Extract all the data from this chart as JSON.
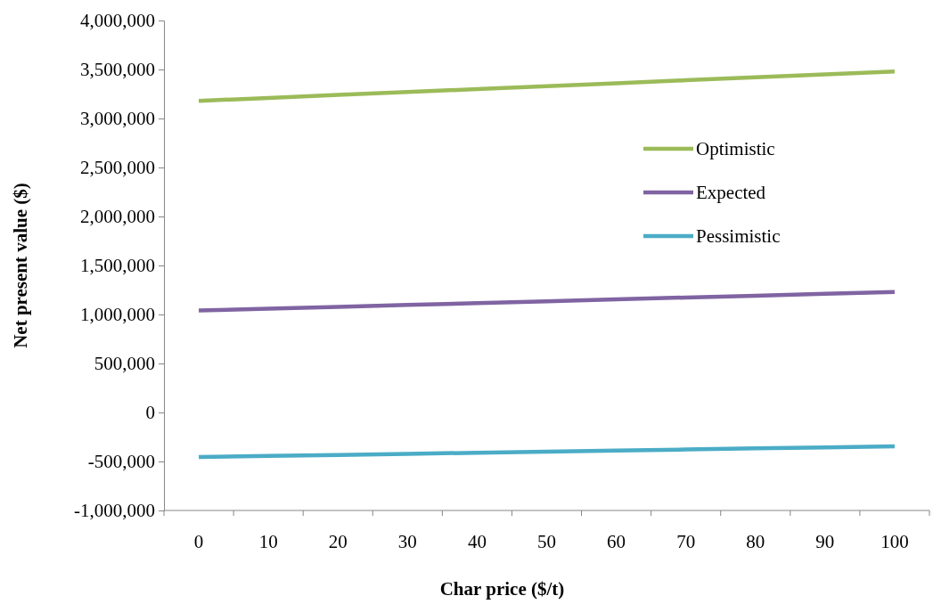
{
  "chart_data": {
    "type": "line",
    "xlabel": "Char price ($/t)",
    "ylabel": "Net present value ($)",
    "categories": [
      "0",
      "10",
      "20",
      "30",
      "40",
      "50",
      "60",
      "70",
      "80",
      "90",
      "100"
    ],
    "series": [
      {
        "name": "Optimistic",
        "color": "#9bbb59",
        "values": [
          3180000,
          3210000,
          3240000,
          3270000,
          3300000,
          3330000,
          3360000,
          3390000,
          3420000,
          3450000,
          3480000
        ]
      },
      {
        "name": "Expected",
        "color": "#8064a2",
        "values": [
          1040000,
          1059000,
          1078000,
          1097000,
          1116000,
          1135000,
          1154000,
          1173000,
          1192000,
          1211000,
          1230000
        ]
      },
      {
        "name": "Pessimistic",
        "color": "#4bacc6",
        "values": [
          -455000,
          -444000,
          -433000,
          -422000,
          -411000,
          -400000,
          -389000,
          -378000,
          -367000,
          -356000,
          -345000
        ]
      }
    ],
    "ylim": [
      -1000000,
      4000000
    ],
    "yticks": [
      {
        "value": -1000000,
        "label": "-1,000,000"
      },
      {
        "value": -500000,
        "label": "-500,000"
      },
      0,
      {
        "value": 500000,
        "label": "500,000"
      },
      {
        "value": 1000000,
        "label": "1,000,000"
      },
      {
        "value": 1500000,
        "label": "1,500,000"
      },
      {
        "value": 2000000,
        "label": "2,000,000"
      },
      {
        "value": 2500000,
        "label": "2,500,000"
      },
      {
        "value": 3000000,
        "label": "3,000,000"
      },
      {
        "value": 3500000,
        "label": "3,500,000"
      },
      {
        "value": 4000000,
        "label": "4,000,000"
      }
    ],
    "grid": false,
    "legend": "right",
    "marker": "none",
    "line_style": "solid"
  }
}
